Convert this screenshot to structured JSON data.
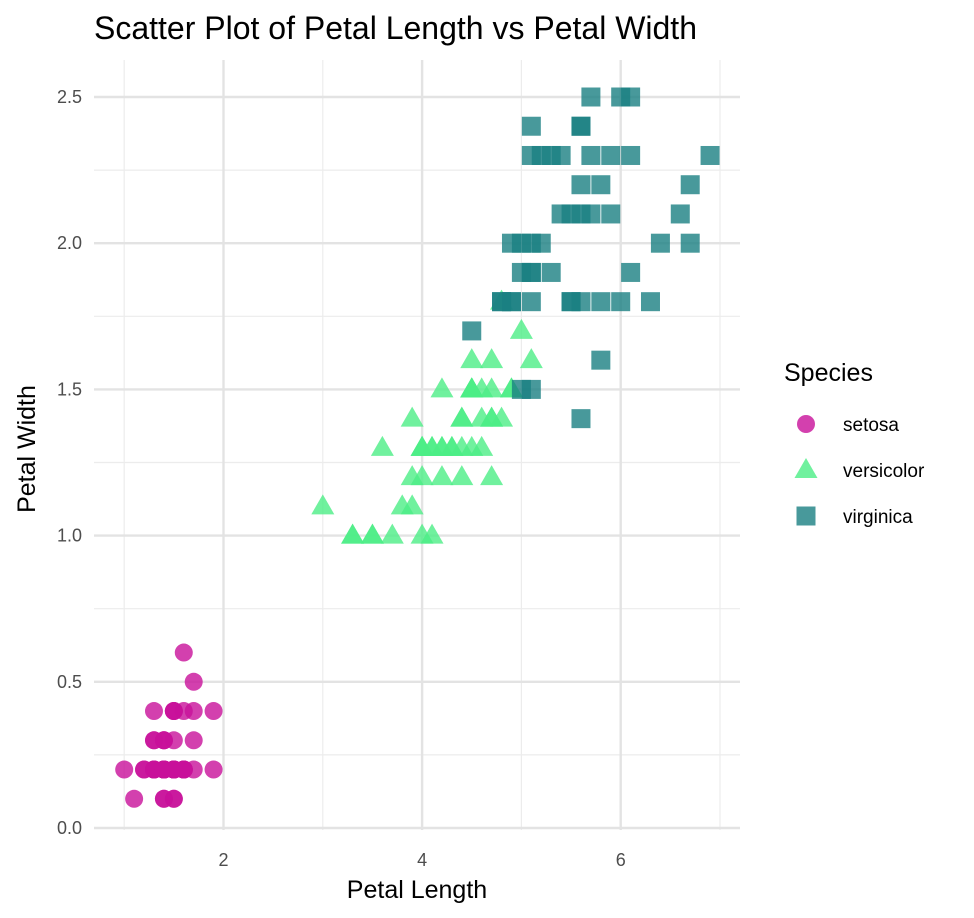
{
  "chart_data": {
    "type": "scatter",
    "title": "Scatter Plot of Petal Length vs Petal Width",
    "xlabel": "Petal Length",
    "ylabel": "Petal Width",
    "xlim": [
      0.7,
      7.2
    ],
    "ylim": [
      0.0,
      2.5
    ],
    "xticks": [
      2,
      4,
      6
    ],
    "xtick_labels": [
      "2",
      "4",
      "6"
    ],
    "yticks": [
      0,
      0.5,
      1.0,
      1.5,
      2.0,
      2.5
    ],
    "ytick_labels": [
      "0.0",
      "0.5",
      "1.0",
      "1.5",
      "2.0",
      "2.5"
    ],
    "grid": true,
    "legend": {
      "title": "Species",
      "position": "right"
    },
    "series": [
      {
        "name": "setosa",
        "color": "#c8109a",
        "marker": "circle",
        "points": [
          [
            1.4,
            0.2
          ],
          [
            1.4,
            0.2
          ],
          [
            1.3,
            0.2
          ],
          [
            1.5,
            0.2
          ],
          [
            1.4,
            0.2
          ],
          [
            1.7,
            0.4
          ],
          [
            1.4,
            0.3
          ],
          [
            1.5,
            0.2
          ],
          [
            1.4,
            0.2
          ],
          [
            1.5,
            0.1
          ],
          [
            1.5,
            0.2
          ],
          [
            1.6,
            0.2
          ],
          [
            1.4,
            0.1
          ],
          [
            1.1,
            0.1
          ],
          [
            1.2,
            0.2
          ],
          [
            1.5,
            0.4
          ],
          [
            1.3,
            0.4
          ],
          [
            1.4,
            0.3
          ],
          [
            1.7,
            0.3
          ],
          [
            1.5,
            0.3
          ],
          [
            1.7,
            0.2
          ],
          [
            1.5,
            0.4
          ],
          [
            1.0,
            0.2
          ],
          [
            1.7,
            0.5
          ],
          [
            1.9,
            0.2
          ],
          [
            1.6,
            0.2
          ],
          [
            1.6,
            0.4
          ],
          [
            1.5,
            0.2
          ],
          [
            1.4,
            0.2
          ],
          [
            1.6,
            0.2
          ],
          [
            1.6,
            0.2
          ],
          [
            1.5,
            0.4
          ],
          [
            1.5,
            0.1
          ],
          [
            1.4,
            0.2
          ],
          [
            1.5,
            0.2
          ],
          [
            1.2,
            0.2
          ],
          [
            1.3,
            0.2
          ],
          [
            1.4,
            0.1
          ],
          [
            1.3,
            0.2
          ],
          [
            1.5,
            0.2
          ],
          [
            1.3,
            0.3
          ],
          [
            1.3,
            0.3
          ],
          [
            1.3,
            0.2
          ],
          [
            1.6,
            0.6
          ],
          [
            1.9,
            0.4
          ],
          [
            1.4,
            0.3
          ],
          [
            1.6,
            0.2
          ],
          [
            1.4,
            0.2
          ],
          [
            1.5,
            0.2
          ],
          [
            1.4,
            0.2
          ]
        ]
      },
      {
        "name": "versicolor",
        "color": "#4cee86",
        "marker": "triangle",
        "points": [
          [
            4.7,
            1.4
          ],
          [
            4.5,
            1.5
          ],
          [
            4.9,
            1.5
          ],
          [
            4.0,
            1.3
          ],
          [
            4.6,
            1.5
          ],
          [
            4.5,
            1.3
          ],
          [
            4.7,
            1.6
          ],
          [
            3.3,
            1.0
          ],
          [
            4.6,
            1.3
          ],
          [
            3.9,
            1.4
          ],
          [
            3.5,
            1.0
          ],
          [
            4.2,
            1.5
          ],
          [
            4.0,
            1.0
          ],
          [
            4.7,
            1.4
          ],
          [
            3.6,
            1.3
          ],
          [
            4.4,
            1.4
          ],
          [
            4.5,
            1.5
          ],
          [
            4.1,
            1.0
          ],
          [
            4.5,
            1.5
          ],
          [
            3.9,
            1.1
          ],
          [
            4.8,
            1.8
          ],
          [
            4.0,
            1.3
          ],
          [
            4.9,
            1.5
          ],
          [
            4.7,
            1.2
          ],
          [
            4.3,
            1.3
          ],
          [
            4.4,
            1.4
          ],
          [
            4.8,
            1.4
          ],
          [
            5.0,
            1.7
          ],
          [
            4.5,
            1.5
          ],
          [
            3.5,
            1.0
          ],
          [
            3.8,
            1.1
          ],
          [
            3.7,
            1.0
          ],
          [
            3.9,
            1.2
          ],
          [
            5.1,
            1.6
          ],
          [
            4.5,
            1.5
          ],
          [
            4.5,
            1.6
          ],
          [
            4.7,
            1.5
          ],
          [
            4.4,
            1.3
          ],
          [
            4.1,
            1.3
          ],
          [
            4.0,
            1.3
          ],
          [
            4.4,
            1.2
          ],
          [
            4.6,
            1.4
          ],
          [
            4.0,
            1.2
          ],
          [
            3.3,
            1.0
          ],
          [
            4.2,
            1.3
          ],
          [
            4.2,
            1.2
          ],
          [
            4.2,
            1.3
          ],
          [
            4.3,
            1.3
          ],
          [
            3.0,
            1.1
          ],
          [
            4.1,
            1.3
          ]
        ]
      },
      {
        "name": "virginica",
        "color": "#1a7f82",
        "marker": "square",
        "points": [
          [
            6.0,
            2.5
          ],
          [
            5.1,
            1.9
          ],
          [
            5.9,
            2.1
          ],
          [
            5.6,
            1.8
          ],
          [
            5.8,
            2.2
          ],
          [
            6.6,
            2.1
          ],
          [
            4.5,
            1.7
          ],
          [
            6.3,
            1.8
          ],
          [
            5.8,
            1.8
          ],
          [
            6.1,
            2.5
          ],
          [
            5.1,
            2.0
          ],
          [
            5.3,
            1.9
          ],
          [
            5.5,
            2.1
          ],
          [
            5.0,
            2.0
          ],
          [
            5.1,
            2.4
          ],
          [
            5.3,
            2.3
          ],
          [
            5.5,
            1.8
          ],
          [
            6.7,
            2.2
          ],
          [
            6.9,
            2.3
          ],
          [
            5.0,
            1.5
          ],
          [
            5.7,
            2.3
          ],
          [
            4.9,
            2.0
          ],
          [
            6.7,
            2.0
          ],
          [
            4.9,
            1.8
          ],
          [
            5.7,
            2.1
          ],
          [
            6.0,
            1.8
          ],
          [
            4.8,
            1.8
          ],
          [
            4.9,
            1.8
          ],
          [
            5.6,
            2.1
          ],
          [
            5.8,
            1.6
          ],
          [
            6.1,
            1.9
          ],
          [
            6.4,
            2.0
          ],
          [
            5.6,
            2.2
          ],
          [
            5.1,
            1.5
          ],
          [
            5.6,
            1.4
          ],
          [
            6.1,
            2.3
          ],
          [
            5.6,
            2.4
          ],
          [
            5.5,
            1.8
          ],
          [
            4.8,
            1.8
          ],
          [
            5.4,
            2.1
          ],
          [
            5.6,
            2.4
          ],
          [
            5.1,
            2.3
          ],
          [
            5.1,
            1.9
          ],
          [
            5.9,
            2.3
          ],
          [
            5.7,
            2.5
          ],
          [
            5.2,
            2.3
          ],
          [
            5.0,
            1.9
          ],
          [
            5.2,
            2.0
          ],
          [
            5.4,
            2.3
          ],
          [
            5.1,
            1.8
          ]
        ]
      }
    ]
  }
}
